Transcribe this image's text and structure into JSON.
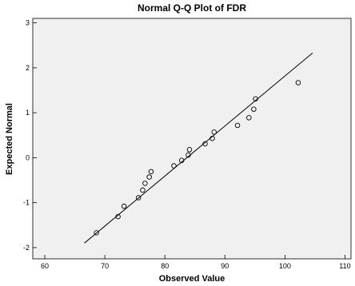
{
  "chart_data": {
    "type": "scatter",
    "title": "Normal Q-Q Plot of FDR",
    "xlabel": "Observed Value",
    "ylabel": "Expected Normal",
    "xlim": [
      58,
      111
    ],
    "ylim": [
      -2.25,
      3.1
    ],
    "x_ticks": [
      60,
      70,
      80,
      90,
      100,
      110
    ],
    "y_ticks": [
      -2,
      -1,
      0,
      1,
      2,
      3
    ],
    "grid": false,
    "legend": "none",
    "colors": {
      "plot_background": "#f0f0f0",
      "frame": "#000000",
      "line": "#000000",
      "marker": "#000000"
    },
    "points": [
      {
        "x": 68.6,
        "y": -1.67
      },
      {
        "x": 72.2,
        "y": -1.31
      },
      {
        "x": 73.2,
        "y": -1.08
      },
      {
        "x": 75.6,
        "y": -0.89
      },
      {
        "x": 76.3,
        "y": -0.72
      },
      {
        "x": 76.7,
        "y": -0.57
      },
      {
        "x": 77.4,
        "y": -0.43
      },
      {
        "x": 77.7,
        "y": -0.31
      },
      {
        "x": 81.5,
        "y": -0.18
      },
      {
        "x": 82.8,
        "y": -0.06
      },
      {
        "x": 83.9,
        "y": 0.06
      },
      {
        "x": 84.1,
        "y": 0.18
      },
      {
        "x": 86.7,
        "y": 0.31
      },
      {
        "x": 87.9,
        "y": 0.43
      },
      {
        "x": 88.2,
        "y": 0.57
      },
      {
        "x": 92.1,
        "y": 0.72
      },
      {
        "x": 94.0,
        "y": 0.89
      },
      {
        "x": 94.8,
        "y": 1.08
      },
      {
        "x": 95.1,
        "y": 1.31
      },
      {
        "x": 102.2,
        "y": 1.67
      }
    ],
    "reference_line": {
      "x": [
        66.6,
        104.6
      ],
      "y": [
        -1.9,
        2.33
      ]
    }
  }
}
